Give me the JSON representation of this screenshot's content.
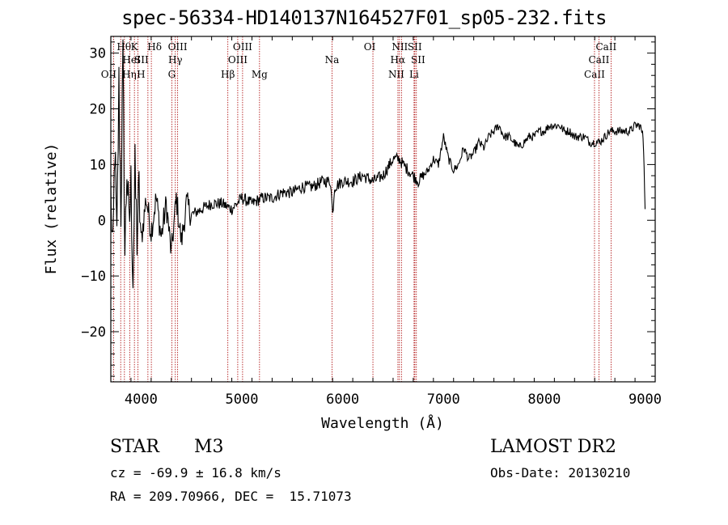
{
  "chart_data": {
    "type": "line",
    "title": "spec-56334-HD140137N164527F01_sp05-232.fits",
    "xlabel": "Wavelength (Å)",
    "ylabel": "Flux (relative)",
    "xlim": [
      3700,
      9100
    ],
    "ylim": [
      -29,
      33
    ],
    "xticks": [
      4000,
      5000,
      6000,
      7000,
      8000,
      9000
    ],
    "yticks": [
      -20,
      -10,
      0,
      10,
      20,
      30
    ],
    "series": [
      {
        "name": "flux",
        "x": [
          3700,
          3720,
          3740,
          3760,
          3780,
          3800,
          3820,
          3840,
          3860,
          3880,
          3900,
          3920,
          3940,
          3960,
          3980,
          4000,
          4050,
          4100,
          4150,
          4200,
          4250,
          4300,
          4350,
          4400,
          4450,
          4500,
          4600,
          4700,
          4800,
          4900,
          5000,
          5100,
          5200,
          5300,
          5400,
          5500,
          5600,
          5700,
          5800,
          5880,
          5900,
          5920,
          6000,
          6100,
          6200,
          6300,
          6400,
          6500,
          6560,
          6600,
          6650,
          6700,
          6750,
          6800,
          6850,
          6900,
          6950,
          7000,
          7050,
          7100,
          7150,
          7200,
          7250,
          7300,
          7350,
          7400,
          7450,
          7500,
          7550,
          7600,
          7650,
          7700,
          7750,
          7800,
          7850,
          7900,
          7950,
          8000,
          8050,
          8100,
          8150,
          8200,
          8250,
          8300,
          8350,
          8400,
          8450,
          8500,
          8550,
          8600,
          8650,
          8700,
          8750,
          8800,
          8850,
          8900,
          8950,
          8980,
          8990,
          9000
        ],
        "values": [
          5,
          -8,
          14,
          -5,
          24,
          2,
          28,
          -6,
          10,
          -2,
          6,
          -10,
          8,
          -3,
          5,
          -4,
          4,
          -2,
          4,
          -3,
          3,
          -6,
          4,
          -4,
          3,
          1,
          2,
          3,
          3,
          2,
          4,
          3,
          4,
          4,
          5,
          5,
          6,
          6,
          7,
          7,
          1,
          6,
          7,
          7,
          8,
          7,
          8,
          11,
          11,
          10,
          9,
          8,
          7,
          8,
          9,
          11,
          10,
          15,
          11,
          9,
          10,
          13,
          11,
          12,
          14,
          13,
          15,
          16,
          17,
          15,
          15,
          14,
          13,
          14,
          15,
          15,
          16,
          16,
          17,
          17,
          17,
          16,
          16,
          15,
          15,
          15,
          14,
          14,
          14,
          15,
          16,
          16,
          16,
          16,
          16,
          17,
          17,
          15,
          10,
          2
        ]
      }
    ],
    "line_markers": [
      {
        "name": "OII",
        "wl": 3727,
        "row": 3,
        "dx": -6
      },
      {
        "name": "Hθ",
        "wl": 3798,
        "row": 1,
        "dx": 4
      },
      {
        "name": "Hη",
        "wl": 3835,
        "row": 3,
        "dx": 6
      },
      {
        "name": "HeI",
        "wl": 3889,
        "row": 2,
        "dx": 2
      },
      {
        "name": "K",
        "wl": 3934,
        "row": 1,
        "dx": 0
      },
      {
        "name": "H",
        "wl": 3968,
        "row": 3,
        "dx": 4
      },
      {
        "name": "SII",
        "wl": 4068,
        "row": 2,
        "dx": -8
      },
      {
        "name": "Hδ",
        "wl": 4102,
        "row": 1,
        "dx": 4
      },
      {
        "name": "G",
        "wl": 4305,
        "row": 3,
        "dx": 0
      },
      {
        "name": "Hγ",
        "wl": 4340,
        "row": 2,
        "dx": 0
      },
      {
        "name": "OIII",
        "wl": 4363,
        "row": 1,
        "dx": 0
      },
      {
        "name": "Hβ",
        "wl": 4861,
        "row": 3,
        "dx": 0
      },
      {
        "name": "OIII",
        "wl": 4959,
        "row": 2,
        "dx": 0
      },
      {
        "name": "OIII",
        "wl": 5007,
        "row": 1,
        "dx": 0
      },
      {
        "name": "Mg",
        "wl": 5175,
        "row": 3,
        "dx": 0
      },
      {
        "name": "Na",
        "wl": 5894,
        "row": 2,
        "dx": 0
      },
      {
        "name": "OI",
        "wl": 6300,
        "row": 1,
        "dx": -4
      },
      {
        "name": "NII",
        "wl": 6548,
        "row": 3,
        "dx": -2
      },
      {
        "name": "Hα",
        "wl": 6563,
        "row": 2,
        "dx": -2
      },
      {
        "name": "NII",
        "wl": 6583,
        "row": 1,
        "dx": -2
      },
      {
        "name": "SII",
        "wl": 6716,
        "row": 2,
        "dx": 4
      },
      {
        "name": "Li",
        "wl": 6708,
        "row": 3,
        "dx": 0
      },
      {
        "name": "SII",
        "wl": 6731,
        "row": 1,
        "dx": -2
      },
      {
        "name": "CaII",
        "wl": 8498,
        "row": 3,
        "dx": 0
      },
      {
        "name": "CaII",
        "wl": 8542,
        "row": 2,
        "dx": 0
      },
      {
        "name": "CaII",
        "wl": 8662,
        "row": 1,
        "dx": -6
      }
    ]
  },
  "info": {
    "object_class": "STAR",
    "subclass": "M3",
    "survey": "LAMOST DR2",
    "cz": "cz = -69.9 ± 16.8 km/s",
    "obs_date": "Obs-Date: 20130210",
    "coords": "RA = 209.70966, DEC =  15.71073"
  },
  "colors": {
    "line": "#000000",
    "marker": "#aa0000",
    "axis": "#000000"
  }
}
